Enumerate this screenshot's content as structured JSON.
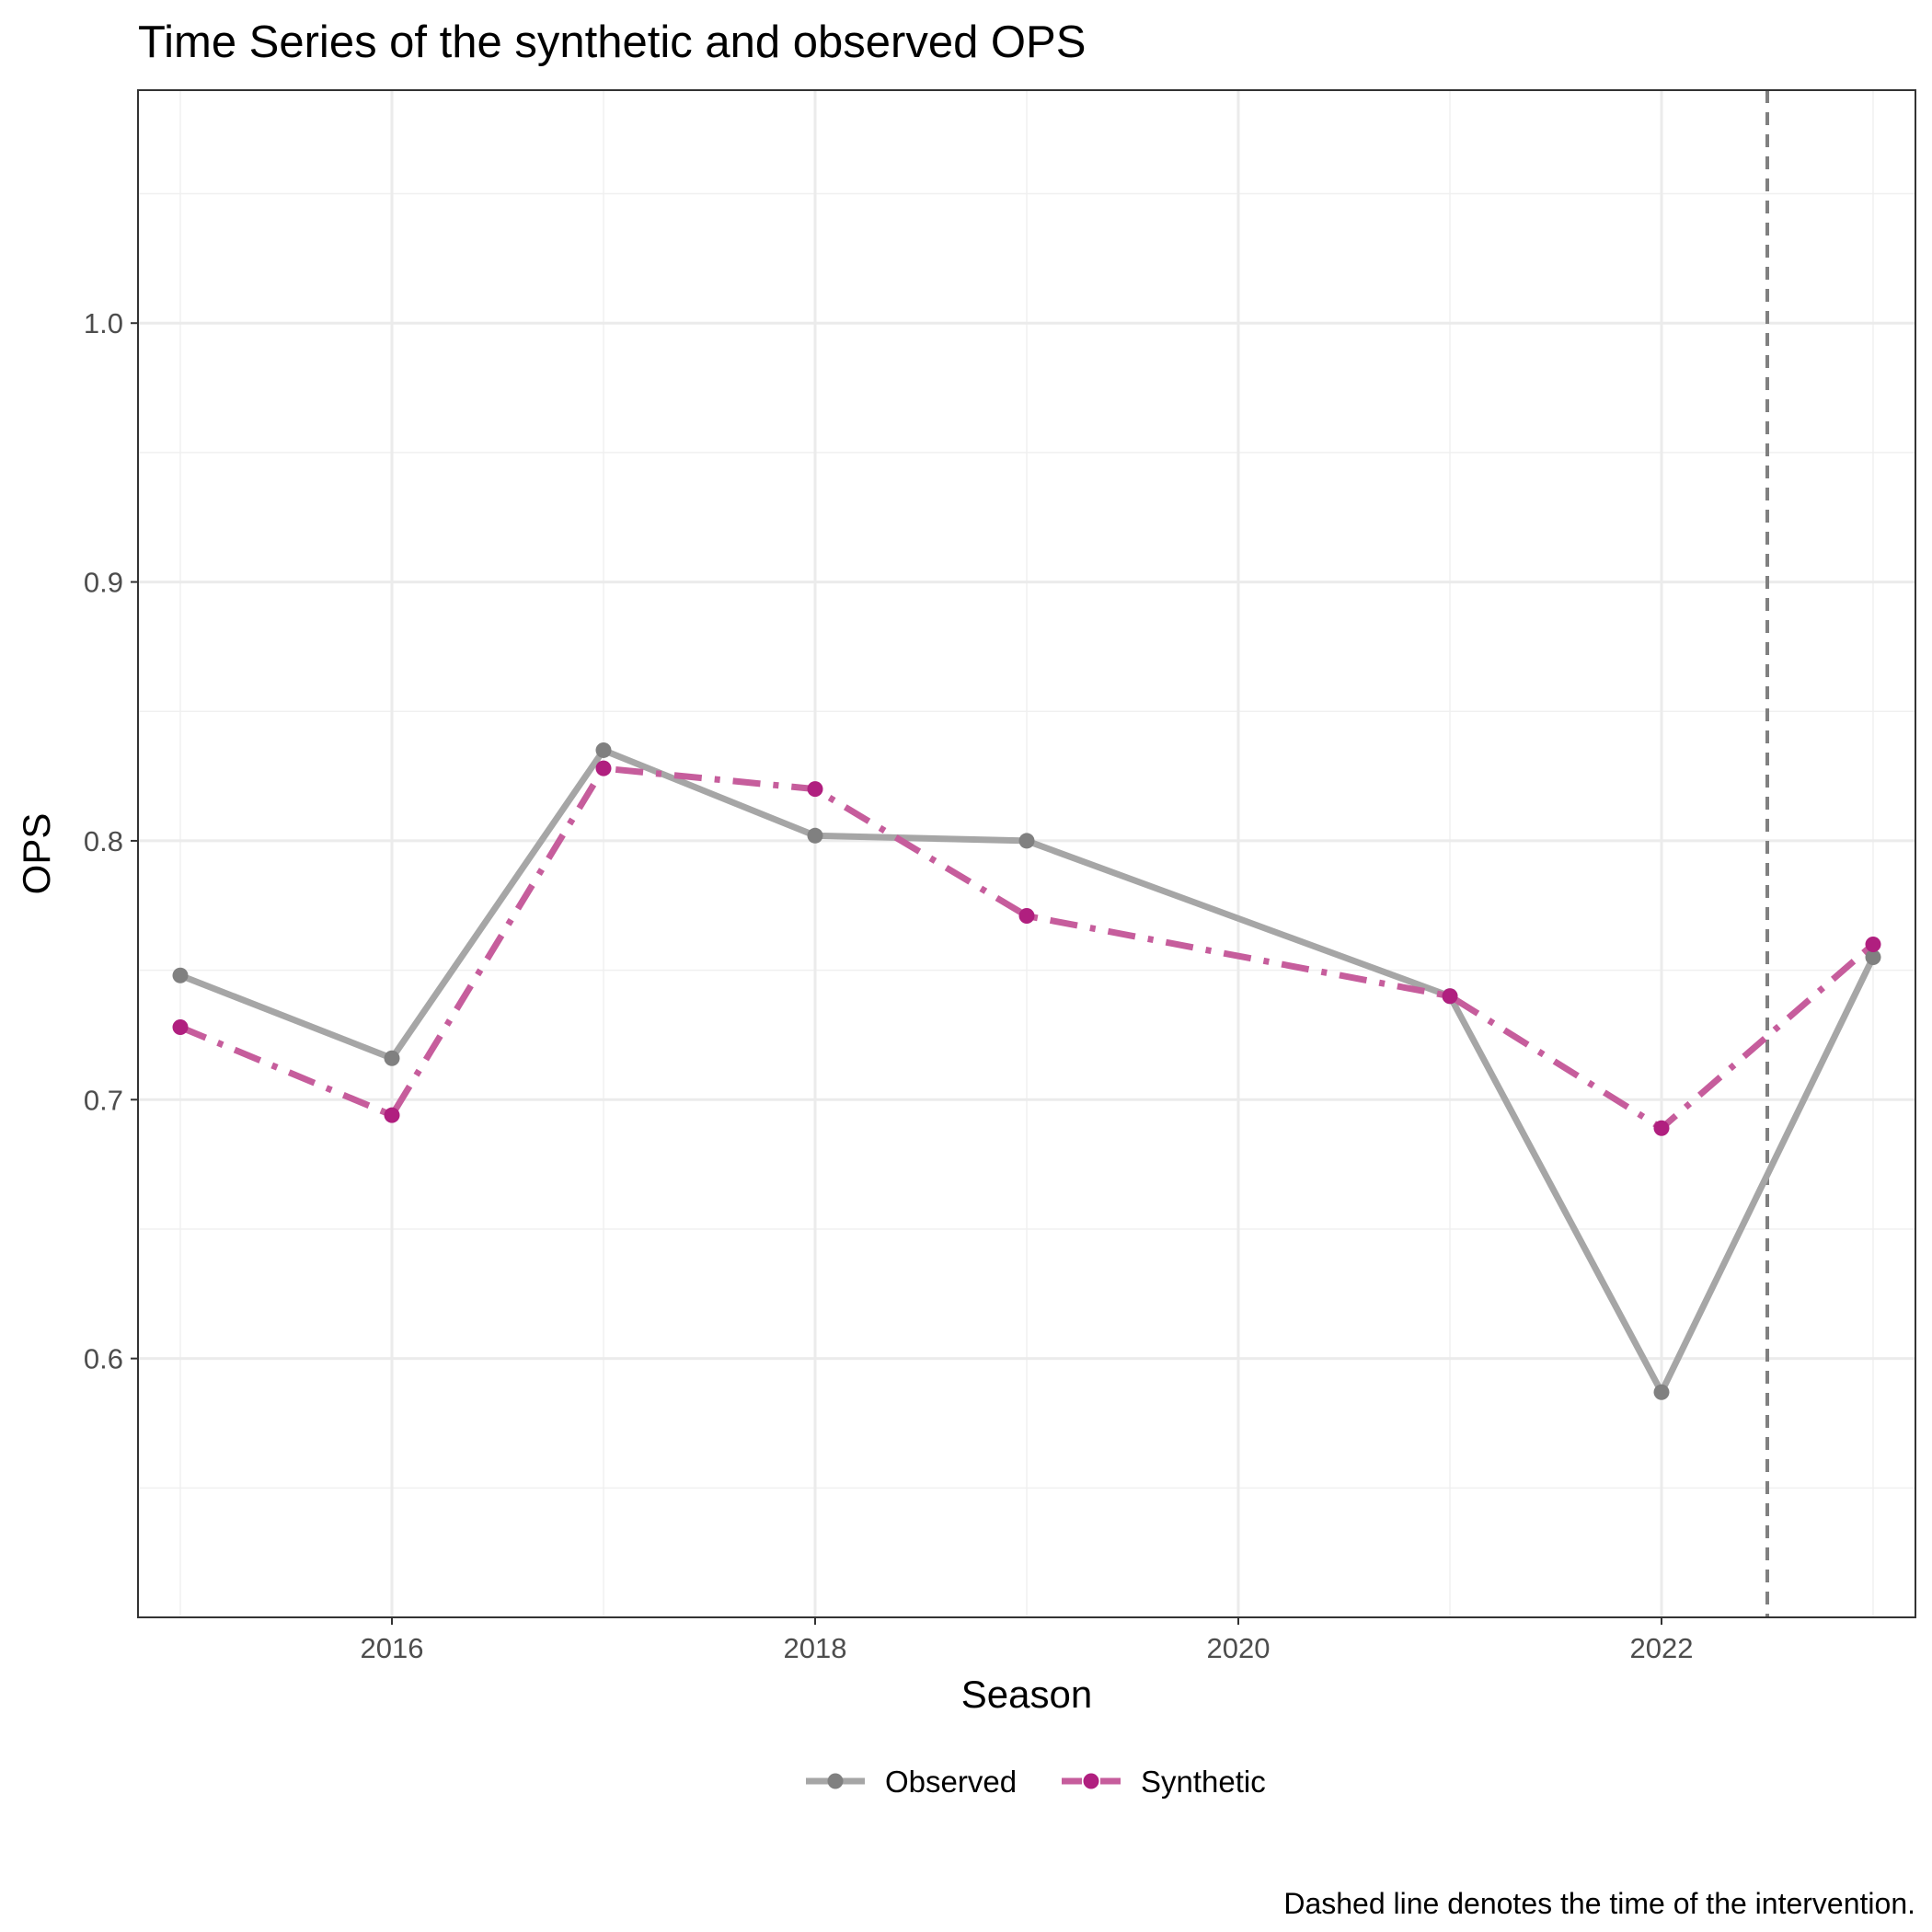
{
  "chart_data": {
    "type": "line",
    "title": "Time Series of the synthetic and observed OPS",
    "xlabel": "Season",
    "ylabel": "OPS",
    "caption": "Dashed line denotes the time of the intervention.",
    "x": [
      2015,
      2016,
      2017,
      2018,
      2019,
      2021,
      2022,
      2023
    ],
    "xlim": [
      2014.8,
      2023.2
    ],
    "ylim": [
      0.5,
      1.09
    ],
    "x_ticks": [
      2016,
      2018,
      2020,
      2022
    ],
    "x_tick_labels": [
      "2016",
      "2018",
      "2020",
      "2022"
    ],
    "y_ticks": [
      0.6,
      0.7,
      0.8,
      0.9,
      1.0
    ],
    "y_tick_labels": [
      "0.6",
      "0.7",
      "0.8",
      "0.9",
      "1.0"
    ],
    "y_minor_ticks": [
      0.55,
      0.65,
      0.75,
      0.85,
      0.95,
      1.05
    ],
    "x_minor_ticks": [
      2015,
      2017,
      2019,
      2021,
      2023
    ],
    "grid": true,
    "legend_position": "bottom",
    "intervention_x": 2022.5,
    "series": [
      {
        "name": "Observed",
        "color": "#a6a6a6",
        "point_color": "#808080",
        "line_style": "solid",
        "values": [
          0.748,
          0.716,
          0.835,
          0.802,
          0.8,
          0.74,
          0.587,
          0.755
        ]
      },
      {
        "name": "Synthetic",
        "color": "#c65d9c",
        "point_color": "#b01f7f",
        "line_style": "dashdot",
        "values": [
          0.728,
          0.694,
          0.828,
          0.82,
          0.771,
          0.74,
          0.689,
          0.76
        ]
      }
    ]
  }
}
